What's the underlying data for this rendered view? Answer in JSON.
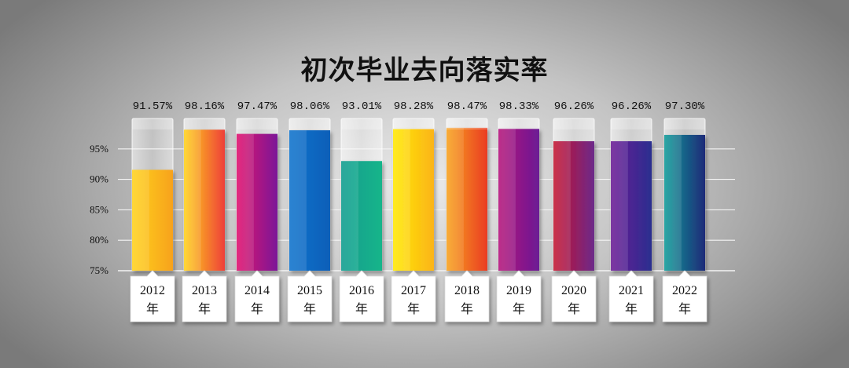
{
  "chart_data": {
    "type": "bar",
    "title": "初次毕业去向落实率",
    "categories": [
      "2012年",
      "2013年",
      "2014年",
      "2015年",
      "2016年",
      "2017年",
      "2018年",
      "2019年",
      "2020年",
      "2021年",
      "2022年"
    ],
    "category_year": [
      "2012",
      "2013",
      "2014",
      "2015",
      "2016",
      "2017",
      "2018",
      "2019",
      "2020",
      "2021",
      "2022"
    ],
    "category_suffix": "年",
    "values": [
      91.57,
      98.16,
      97.47,
      98.06,
      93.01,
      98.28,
      98.47,
      98.33,
      96.26,
      96.26,
      97.3
    ],
    "value_labels": [
      "91.57%",
      "98.16%",
      "97.47%",
      "98.06%",
      "93.01%",
      "98.28%",
      "98.47%",
      "98.33%",
      "96.26%",
      "96.26%",
      "97.30%"
    ],
    "yticks": [
      75,
      80,
      85,
      90,
      95
    ],
    "ytick_labels": [
      "75%",
      "80%",
      "85%",
      "90%",
      "95%"
    ],
    "ylim": [
      75,
      100
    ],
    "grid": true,
    "legend": "none",
    "colors": [
      [
        "#ffd21a",
        "#f7a21c"
      ],
      [
        "#ffd21a",
        "#ee3f3a"
      ],
      [
        "#e0106c",
        "#7b1898"
      ],
      [
        "#0e72cc",
        "#0e5fb8"
      ],
      [
        "#0d9c8e",
        "#19b58a"
      ],
      [
        "#ffe800",
        "#fbb41a"
      ],
      [
        "#f7a21c",
        "#ea3c24"
      ],
      [
        "#b4117a",
        "#6b1b95"
      ],
      [
        "#c4122f",
        "#6c2a8a"
      ],
      [
        "#6b1b95",
        "#2a2f8f"
      ],
      [
        "#0e9a98",
        "#1f2a78"
      ]
    ]
  }
}
